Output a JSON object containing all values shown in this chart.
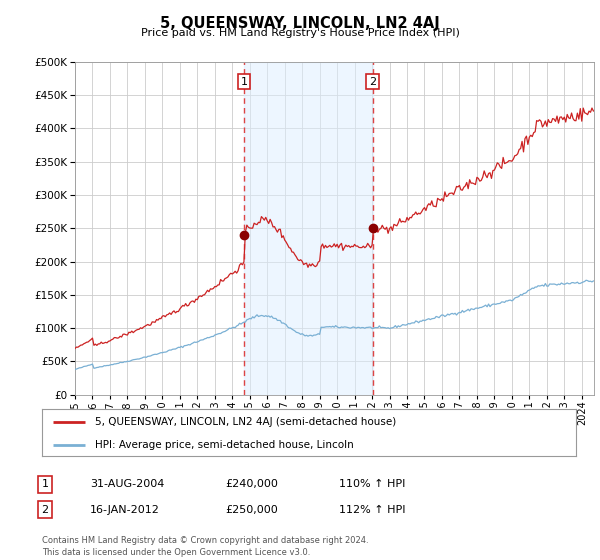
{
  "title": "5, QUEENSWAY, LINCOLN, LN2 4AJ",
  "subtitle": "Price paid vs. HM Land Registry's House Price Index (HPI)",
  "background_color": "#ffffff",
  "plot_bg_color": "#ffffff",
  "grid_color": "#cccccc",
  "ylim": [
    0,
    500000
  ],
  "yticks": [
    0,
    50000,
    100000,
    150000,
    200000,
    250000,
    300000,
    350000,
    400000,
    450000,
    500000
  ],
  "sale_marker_color": "#8b0000",
  "hpi_line_color": "#7ab0d4",
  "price_line_color": "#cc2222",
  "vline_color": "#dd4444",
  "shaded_region_color": "#ddeeff",
  "shaded_alpha": 0.5,
  "marker1_x": 2004.667,
  "marker1_y": 240000,
  "marker2_x": 2012.042,
  "marker2_y": 250000,
  "xlim_left": 1995.3,
  "xlim_right": 2024.7,
  "legend_price_label": "5, QUEENSWAY, LINCOLN, LN2 4AJ (semi-detached house)",
  "legend_hpi_label": "HPI: Average price, semi-detached house, Lincoln",
  "table_row1": [
    "1",
    "31-AUG-2004",
    "£240,000",
    "110% ↑ HPI"
  ],
  "table_row2": [
    "2",
    "16-JAN-2012",
    "£250,000",
    "112% ↑ HPI"
  ],
  "footer": "Contains HM Land Registry data © Crown copyright and database right 2024.\nThis data is licensed under the Open Government Licence v3.0."
}
